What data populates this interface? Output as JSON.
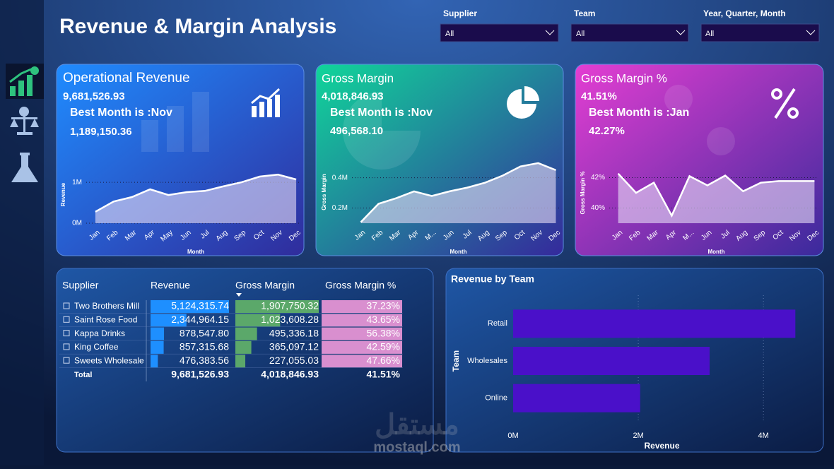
{
  "header": {
    "title": "Revenue & Margin Analysis"
  },
  "filters": [
    {
      "label": "Supplier",
      "value": "All"
    },
    {
      "label": "Team",
      "value": "All"
    },
    {
      "label": "Year, Quarter, Month",
      "value": "All"
    }
  ],
  "kpis": [
    {
      "title": "Operational Revenue",
      "value": "9,681,526.93",
      "best_month": "Best Month is :Nov",
      "best_value": "1,189,150.36"
    },
    {
      "title": "Gross Margin",
      "value": "4,018,846.93",
      "best_month": "Best Month is :Nov",
      "best_value": "496,568.10"
    },
    {
      "title": "Gross Margin %",
      "value": "41.51%",
      "best_month": "Best Month is :Jan",
      "best_value": "42.27%"
    }
  ],
  "table": {
    "columns": [
      "Supplier",
      "Revenue",
      "Gross Margin",
      "Gross Margin %"
    ],
    "colors": [
      "#1e8fff",
      "#5ba86a",
      "#d98fcf"
    ],
    "rows": [
      [
        "Two Brothers Mill",
        {
          "value": 5124315.74,
          "label": "5,124,315.74"
        },
        {
          "value": 1907750.32,
          "label": "1,907,750.32"
        },
        {
          "value": 37.23,
          "label": "37.23%"
        }
      ],
      [
        "Saint Rose Food",
        {
          "value": 2344964.15,
          "label": "2,344,964.15"
        },
        {
          "value": 1023608.28,
          "label": "1,023,608.28"
        },
        {
          "value": 43.65,
          "label": "43.65%"
        }
      ],
      [
        "Kappa Drinks",
        {
          "value": 878547.8,
          "label": "878,547.80"
        },
        {
          "value": 495336.18,
          "label": "495,336.18"
        },
        {
          "value": 56.38,
          "label": "56.38%"
        }
      ],
      [
        "King Coffee",
        {
          "value": 857315.68,
          "label": "857,315.68"
        },
        {
          "value": 365097.12,
          "label": "365,097.12"
        },
        {
          "value": 42.59,
          "label": "42.59%"
        }
      ],
      [
        "Sweets Wholesale",
        {
          "value": 476383.56,
          "label": "476,383.56"
        },
        {
          "value": 227055.03,
          "label": "227,055.03"
        },
        {
          "value": 47.66,
          "label": "47.66%"
        }
      ]
    ],
    "total": [
      "Total",
      "9,681,526.93",
      "4,018,846.93",
      "41.51%"
    ]
  },
  "chart_data": [
    {
      "type": "area",
      "categories": [
        "Jan",
        "Feb",
        "Mar",
        "Apr",
        "May",
        "Jun",
        "Jul",
        "Aug",
        "Sep",
        "Oct",
        "Nov",
        "Dec"
      ],
      "values": [
        280000,
        530000,
        640000,
        830000,
        690000,
        760000,
        790000,
        900000,
        1000000,
        1140000,
        1189150.36,
        1070000
      ],
      "color": "#e8ddf7",
      "ylim": [
        0,
        1400000
      ],
      "yticks": [
        {
          "value": 0,
          "label": "0M"
        },
        {
          "value": 1000000,
          "label": "1M"
        }
      ],
      "xlabel": "Month",
      "ylabel": "Revenue",
      "grid": true
    },
    {
      "type": "area",
      "categories": [
        "Jan",
        "Feb",
        "Mar",
        "Apr",
        "M...",
        "Jun",
        "Jul",
        "Aug",
        "Sep",
        "Oct",
        "Nov",
        "Dec"
      ],
      "values": [
        107000,
        228000,
        265000,
        310000,
        280000,
        310000,
        335000,
        367000,
        414000,
        474000,
        496568.1,
        450000
      ],
      "color": "#e8ddf7",
      "ylim": [
        100000,
        510000
      ],
      "yticks": [
        {
          "value": 200000,
          "label": "0.2M"
        },
        {
          "value": 400000,
          "label": "0.4M"
        }
      ],
      "xlabel": "Month",
      "ylabel": "Gross Margin",
      "grid": true
    },
    {
      "type": "area",
      "categories": [
        "Jan",
        "Feb",
        "Mar",
        "Apr",
        "M...",
        "Jun",
        "Jul",
        "Aug",
        "Sep",
        "Oct",
        "Nov",
        "Dec"
      ],
      "values": [
        42.27,
        41.0,
        41.67,
        39.5,
        42.1,
        41.49,
        42.14,
        41.1,
        41.67,
        41.77,
        41.77,
        41.77
      ],
      "color": "#e8ddf7",
      "ylim": [
        39,
        43
      ],
      "yticks": [
        {
          "value": 40,
          "label": "40%"
        },
        {
          "value": 42,
          "label": "42%"
        }
      ],
      "xlabel": "Month",
      "ylabel": "Gross Margin %",
      "grid": true
    },
    {
      "type": "bar",
      "title": "Revenue by Team",
      "categories": [
        "Retail",
        "Wholesales",
        "Online"
      ],
      "values": [
        4510000,
        3140000,
        2030000
      ],
      "color": "#4a10c9",
      "xlim": [
        0,
        4800000
      ],
      "xticks": [
        {
          "value": 0,
          "label": "0M"
        },
        {
          "value": 2000000,
          "label": "2M"
        },
        {
          "value": 4000000,
          "label": "4M"
        }
      ],
      "xlabel": "Revenue",
      "ylabel": "Team",
      "grid": true
    }
  ],
  "watermark": {
    "arabic": "مستقل",
    "latin": "mostaql.com"
  }
}
